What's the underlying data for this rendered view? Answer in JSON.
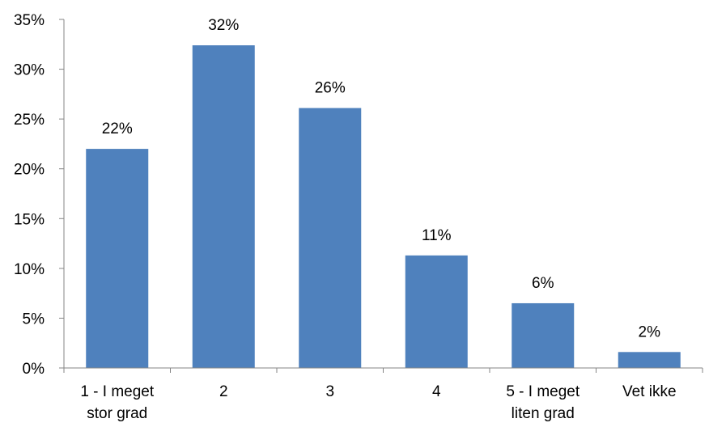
{
  "chart_data": {
    "type": "bar",
    "title": "",
    "xlabel": "",
    "ylabel": "",
    "categories": [
      [
        "1 - I meget",
        "stor grad"
      ],
      [
        "2"
      ],
      [
        "3"
      ],
      [
        "4"
      ],
      [
        "5 - I meget",
        "liten grad"
      ],
      [
        "Vet ikke"
      ]
    ],
    "values": [
      22,
      32.4,
      26.1,
      11.3,
      6.5,
      1.6
    ],
    "data_labels": [
      "22%",
      "32%",
      "26%",
      "11%",
      "6%",
      "2%"
    ],
    "ylim": [
      0,
      35
    ],
    "yticks": [
      0,
      5,
      10,
      15,
      20,
      25,
      30,
      35
    ],
    "ytick_labels": [
      "0%",
      "5%",
      "10%",
      "15%",
      "20%",
      "25%",
      "30%",
      "35%"
    ],
    "grid": false,
    "legend": "none",
    "colors": {
      "bar": "#4f81bd",
      "axis": "#868686",
      "text": "#000000"
    }
  }
}
